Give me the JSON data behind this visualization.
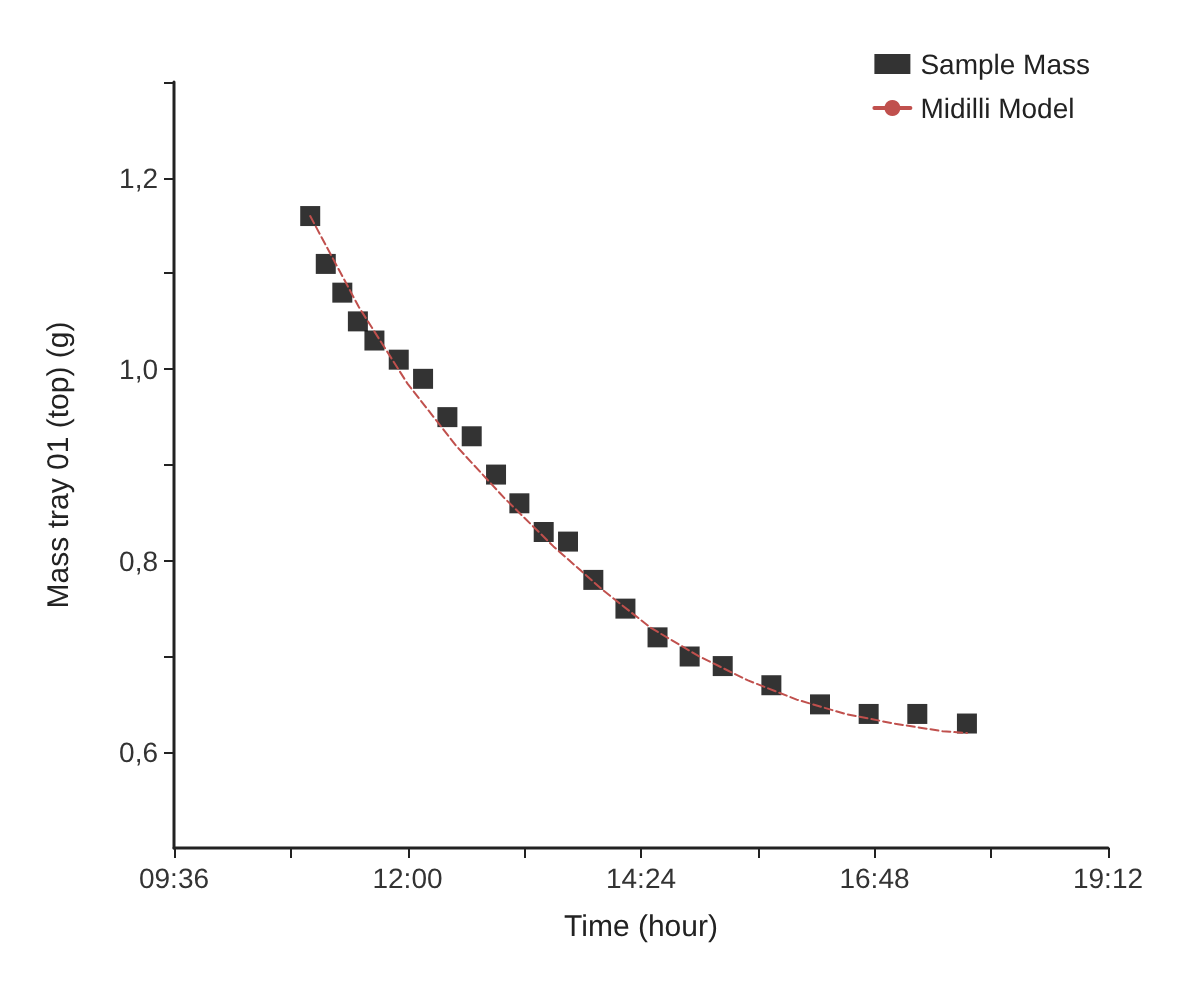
{
  "chart_data": {
    "type": "scatter",
    "xlabel": "Time (hour)",
    "ylabel": "Mass tray 01 (top) (g)",
    "xlim": [
      9.6,
      19.2
    ],
    "ylim": [
      0.5,
      1.3
    ],
    "xticks": [
      {
        "value": 9.6,
        "label": "09:36"
      },
      {
        "value": 10.8,
        "label": null
      },
      {
        "value": 12,
        "label": "12:00"
      },
      {
        "value": 13.2,
        "label": null
      },
      {
        "value": 14.4,
        "label": "14:24"
      },
      {
        "value": 15.6,
        "label": null
      },
      {
        "value": 16.8,
        "label": "16:48"
      },
      {
        "value": 18,
        "label": null
      },
      {
        "value": 19.2,
        "label": "19:12"
      }
    ],
    "yticks": [
      {
        "value": 0.6,
        "label": "0,6"
      },
      {
        "value": 0.7,
        "label": null
      },
      {
        "value": 0.8,
        "label": "0,8"
      },
      {
        "value": 0.9,
        "label": null
      },
      {
        "value": 1.0,
        "label": "1,0"
      },
      {
        "value": 1.1,
        "label": null
      },
      {
        "value": 1.2,
        "label": "1,2"
      },
      {
        "value": 1.3,
        "label": null
      }
    ],
    "legend": "top right",
    "grid": false,
    "series": [
      {
        "name": "Sample Mass",
        "marker": "square",
        "color": "#000000",
        "x": [
          11.0,
          11.16,
          11.33,
          11.49,
          11.66,
          11.91,
          12.16,
          12.41,
          12.66,
          12.91,
          13.15,
          13.4,
          13.65,
          13.91,
          14.24,
          14.57,
          14.9,
          15.24,
          15.74,
          16.24,
          16.74,
          17.24,
          17.75
        ],
        "values": [
          1.16,
          1.11,
          1.08,
          1.05,
          1.03,
          1.01,
          0.99,
          0.95,
          0.93,
          0.89,
          0.86,
          0.83,
          0.82,
          0.78,
          0.75,
          0.72,
          0.7,
          0.69,
          0.67,
          0.65,
          0.64,
          0.64,
          0.63
        ]
      },
      {
        "name": "Midilli Model",
        "type": "line",
        "marker": "none",
        "line_style": "dashed",
        "color": "#c0504d",
        "x": [
          11.0,
          11.5,
          12.0,
          12.5,
          13.0,
          13.5,
          14.0,
          14.5,
          15.0,
          15.5,
          16.0,
          16.5,
          17.0,
          17.5,
          17.75
        ],
        "values": [
          1.16,
          1.065,
          0.985,
          0.92,
          0.865,
          0.815,
          0.77,
          0.73,
          0.7,
          0.675,
          0.655,
          0.64,
          0.63,
          0.622,
          0.62
        ]
      }
    ]
  }
}
